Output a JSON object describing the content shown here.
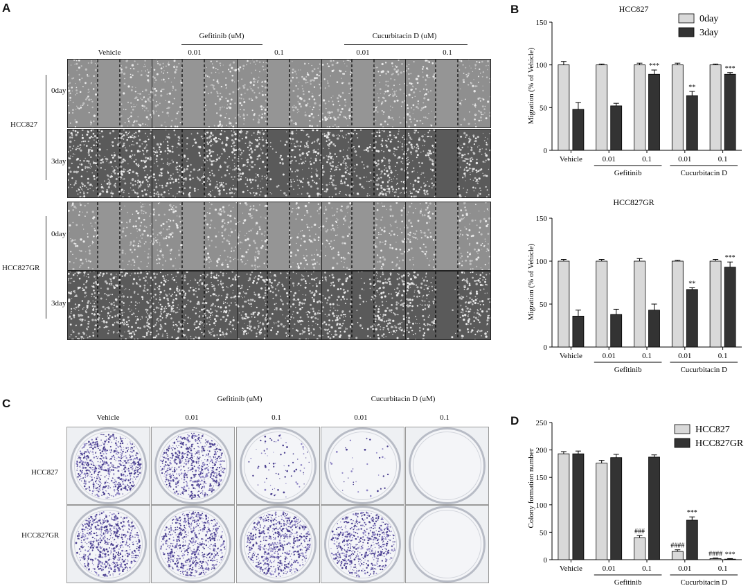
{
  "panels": {
    "a": "A",
    "b": "B",
    "c": "C",
    "d": "D"
  },
  "panel_a": {
    "group_gefitinib": "Gefitinib (uM)",
    "group_cucurbitacin": "Cucurbitacin D (uM)",
    "columns": [
      "Vehicle",
      "0.01",
      "0.1",
      "0.01",
      "0.1"
    ],
    "cell_lines": [
      "HCC827",
      "HCC827GR"
    ],
    "days": [
      "0day",
      "3day"
    ]
  },
  "panel_c": {
    "group_gefitinib": "Gefitinib (uM)",
    "group_cucurbitacin": "Cucurbitacin D (uM)",
    "columns": [
      "Vehicle",
      "0.01",
      "0.1",
      "0.01",
      "0.1"
    ],
    "rows": [
      "HCC827",
      "HCC827GR"
    ],
    "colony_density": [
      [
        1.0,
        1.0,
        0.12,
        0.05,
        0.0
      ],
      [
        1.0,
        1.0,
        1.0,
        0.9,
        0.0
      ]
    ]
  },
  "colors": {
    "light_bar": "#d9d9d9",
    "dark_bar": "#333333"
  },
  "chart_data": [
    {
      "type": "bar",
      "title": "HCC827",
      "ylabel": "Migration (% of Vehicle)",
      "ylim": [
        0,
        150
      ],
      "yticks": [
        0,
        50,
        100,
        150
      ],
      "categories": [
        "Vehicle",
        "0.01",
        "0.1",
        "0.01",
        "0.1"
      ],
      "category_groups": [
        {
          "label": "Gefitinib",
          "from": 1,
          "to": 2
        },
        {
          "label": "Cucurbitacin D",
          "from": 3,
          "to": 4
        }
      ],
      "series": [
        {
          "name": "0day",
          "values": [
            100,
            100,
            100,
            100,
            100
          ],
          "errors": [
            4,
            1,
            2,
            2,
            1
          ]
        },
        {
          "name": "3day",
          "values": [
            48,
            52,
            89,
            64,
            89
          ],
          "errors": [
            8,
            3,
            5,
            5,
            2
          ]
        }
      ],
      "annotations": [
        {
          "category": 2,
          "series": 1,
          "text": "***"
        },
        {
          "category": 3,
          "series": 1,
          "text": "**"
        },
        {
          "category": 4,
          "series": 1,
          "text": "***"
        }
      ],
      "legend": "top-right",
      "grid": false
    },
    {
      "type": "bar",
      "title": "HCC827GR",
      "ylabel": "Migration (% of Vehicle)",
      "ylim": [
        0,
        150
      ],
      "yticks": [
        0,
        50,
        100,
        150
      ],
      "categories": [
        "Vehicle",
        "0.01",
        "0.1",
        "0.01",
        "0.1"
      ],
      "category_groups": [
        {
          "label": "Gefitinib",
          "from": 1,
          "to": 2
        },
        {
          "label": "Cucurbitacin D",
          "from": 3,
          "to": 4
        }
      ],
      "series": [
        {
          "values": [
            100,
            100,
            100,
            100,
            100
          ],
          "errors": [
            2,
            2,
            3,
            1,
            2
          ]
        },
        {
          "values": [
            36,
            38,
            43,
            67,
            93
          ],
          "errors": [
            7,
            6,
            7,
            2,
            6
          ]
        }
      ],
      "annotations": [
        {
          "category": 3,
          "series": 1,
          "text": "**"
        },
        {
          "category": 4,
          "series": 1,
          "text": "***"
        }
      ],
      "grid": false
    },
    {
      "type": "bar",
      "ylabel": "Colony formation number",
      "ylim": [
        0,
        250
      ],
      "yticks": [
        0,
        50,
        100,
        150,
        200,
        250
      ],
      "categories": [
        "Vehicle",
        "0.01",
        "0.1",
        "0.01",
        "0.1"
      ],
      "category_groups": [
        {
          "label": "Gefitinib",
          "from": 1,
          "to": 2
        },
        {
          "label": "Cucurbitacin D",
          "from": 3,
          "to": 4
        }
      ],
      "series": [
        {
          "name": "HCC827",
          "values": [
            193,
            176,
            40,
            15,
            2
          ],
          "errors": [
            4,
            5,
            4,
            3,
            1
          ]
        },
        {
          "name": "HCC827GR",
          "values": [
            193,
            186,
            187,
            72,
            1
          ],
          "errors": [
            5,
            6,
            4,
            6,
            1
          ]
        }
      ],
      "annotations": [
        {
          "category": 2,
          "series": 0,
          "text": "###"
        },
        {
          "category": 3,
          "series": 0,
          "text": "####"
        },
        {
          "category": 3,
          "series": 1,
          "text": "***"
        },
        {
          "category": 4,
          "series": 0,
          "text": "####"
        },
        {
          "category": 4,
          "series": 1,
          "text": "***"
        }
      ],
      "legend": "top-right",
      "grid": false
    }
  ]
}
